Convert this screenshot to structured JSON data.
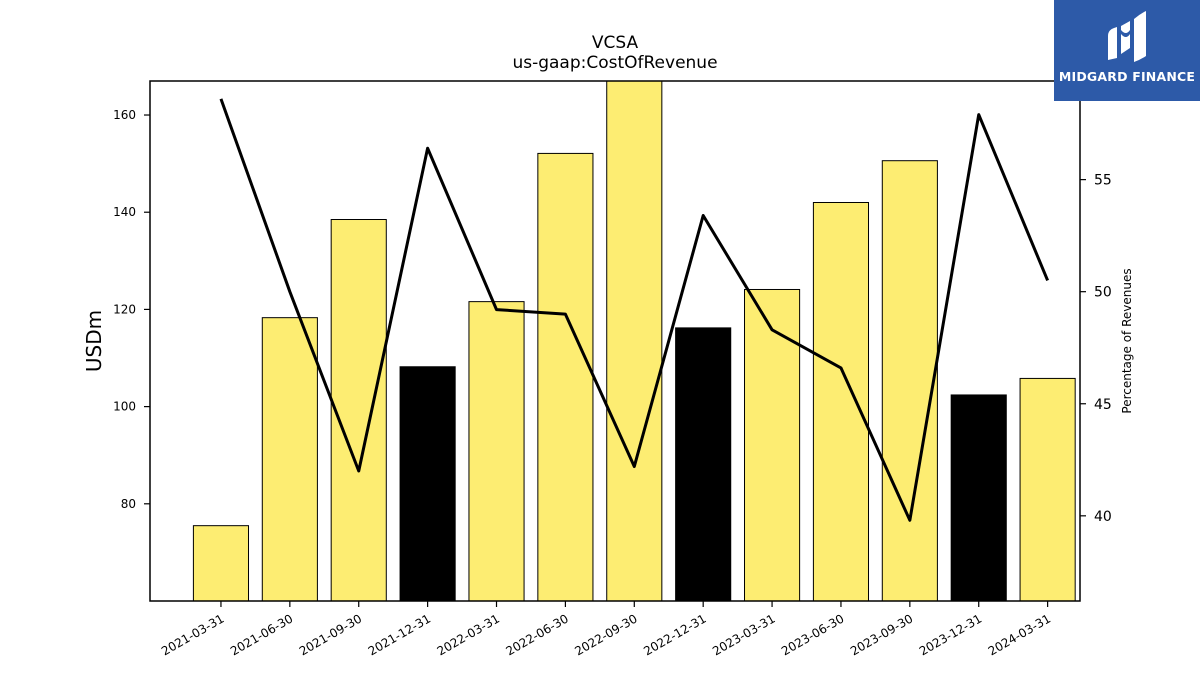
{
  "logo": {
    "text": "MIDGARD FINANCE",
    "background": "#2d5aa8",
    "icon": "midgard-m-logo-icon"
  },
  "chart_data": {
    "type": "bar",
    "title": "VCSA",
    "subtitle": "us-gaap:CostOfRevenue",
    "ylabel": "USDm",
    "ylabel_right": "Percentage of Revenues",
    "categories": [
      "2021-03-31",
      "2021-06-30",
      "2021-09-30",
      "2021-12-31",
      "2022-03-31",
      "2022-06-30",
      "2022-09-30",
      "2022-12-31",
      "2023-03-31",
      "2023-06-30",
      "2023-09-30",
      "2023-12-31",
      "2024-03-31"
    ],
    "values": [
      75.5,
      118.3,
      138.5,
      108.2,
      121.6,
      152.1,
      168.5,
      116.2,
      124.1,
      142.0,
      150.6,
      102.4,
      105.8
    ],
    "bar_colors": [
      "#fded72",
      "#fded72",
      "#fded72",
      "#000000",
      "#fded72",
      "#fded72",
      "#fded72",
      "#000000",
      "#fded72",
      "#fded72",
      "#fded72",
      "#000000",
      "#fded72"
    ],
    "percent_of_revenue": [
      58.6,
      50.0,
      42.0,
      56.4,
      49.2,
      49.0,
      42.2,
      53.4,
      48.3,
      46.6,
      39.8,
      57.9,
      50.5
    ],
    "ylim": [
      60,
      167
    ],
    "yticks": [
      80,
      100,
      120,
      140,
      160
    ],
    "ylim_right": [
      36.2,
      59.4
    ],
    "yticks_right": [
      40,
      45,
      50,
      55
    ],
    "line_color": "#000000",
    "grid": false,
    "legend": "none"
  }
}
